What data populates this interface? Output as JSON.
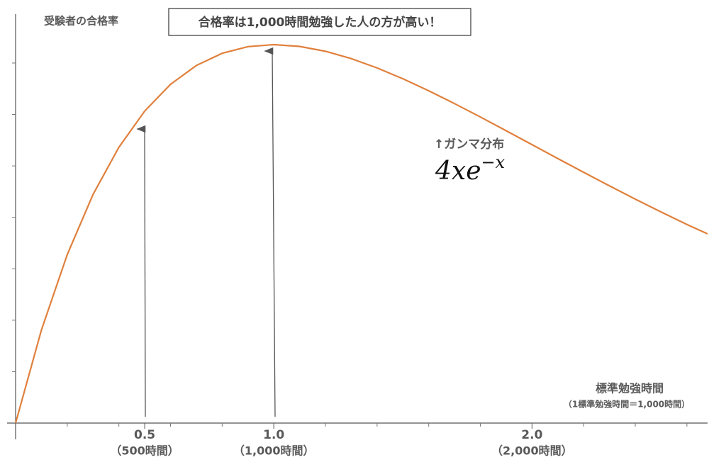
{
  "chart_data": {
    "type": "line",
    "y_label": "受験者の合格率",
    "x_label": "標準勉強時間",
    "x_label_note": "（1標準勉強時間＝1,000時間）",
    "callout": "合格率は1,000時間勉強した人の方が高い！",
    "curve_label": "↑ガンマ分布",
    "formula": {
      "base": "4xe",
      "exponent": "−x"
    },
    "x": [
      0,
      0.1,
      0.2,
      0.3,
      0.4,
      0.5,
      0.6,
      0.7,
      0.8,
      0.9,
      1.0,
      1.1,
      1.2,
      1.3,
      1.4,
      1.5,
      1.6,
      1.7,
      1.8,
      1.9,
      2.0,
      2.1,
      2.2,
      2.3,
      2.4,
      2.5,
      2.6,
      2.68
    ],
    "series": [
      {
        "color": "#e0803c",
        "values": [
          0,
          0.3619,
          0.655,
          0.889,
          1.0725,
          1.2131,
          1.3172,
          1.3904,
          1.4379,
          1.4637,
          1.4715,
          1.4646,
          1.4457,
          1.4172,
          1.3809,
          1.3388,
          1.2921,
          1.2423,
          1.1902,
          1.1367,
          1.0827,
          1.0286,
          0.9751,
          0.9224,
          0.8709,
          0.8208,
          0.7724,
          0.7356
        ]
      }
    ],
    "xlim": [
      0,
      2.68
    ],
    "ylim": [
      0,
      1.59
    ],
    "xticks": [
      {
        "value": 0.5,
        "label": "0.5"
      },
      {
        "value": 1.0,
        "label": "1.0"
      },
      {
        "value": 2.0,
        "label": "2.0"
      }
    ],
    "xtick_notes": [
      "（500時間）",
      "（1,000時間）",
      "（2,000時間）"
    ],
    "xminor_ticks": [
      0.2,
      0.4,
      0.6,
      0.8,
      1.2,
      1.4,
      1.6,
      1.8,
      2.2,
      2.4,
      2.6
    ],
    "yticks": [
      0.2,
      0.4,
      0.6,
      0.8,
      1,
      1.2,
      1.4
    ]
  }
}
